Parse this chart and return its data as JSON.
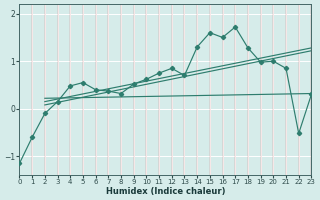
{
  "xlabel": "Humidex (Indice chaleur)",
  "bg_color": "#d6ecea",
  "grid_color": "#b8d8d8",
  "line_color": "#2e7d6e",
  "xmin": 0,
  "xmax": 23,
  "ymin": -1.4,
  "ymax": 2.2,
  "yticks": [
    -1,
    0,
    1,
    2
  ],
  "xticks": [
    0,
    1,
    2,
    3,
    4,
    5,
    6,
    7,
    8,
    9,
    10,
    11,
    12,
    13,
    14,
    15,
    16,
    17,
    18,
    19,
    20,
    21,
    22,
    23
  ],
  "main_x": [
    0,
    1,
    2,
    3,
    4,
    5,
    6,
    7,
    8,
    9,
    10,
    11,
    12,
    13,
    14,
    15,
    16,
    17,
    18,
    19,
    20,
    21,
    22,
    23
  ],
  "main_y": [
    -1.15,
    -0.6,
    -0.1,
    0.15,
    0.48,
    0.55,
    0.4,
    0.37,
    0.32,
    0.52,
    0.62,
    0.75,
    0.85,
    0.7,
    1.3,
    1.6,
    1.5,
    1.72,
    1.28,
    0.98,
    1.0,
    0.85,
    -0.52,
    0.3
  ],
  "line1_x": [
    2,
    23
  ],
  "line1_y": [
    0.22,
    0.32
  ],
  "line2_x": [
    2,
    23
  ],
  "line2_y": [
    0.08,
    1.22
  ],
  "line3_x": [
    2,
    23
  ],
  "line3_y": [
    0.15,
    1.28
  ]
}
